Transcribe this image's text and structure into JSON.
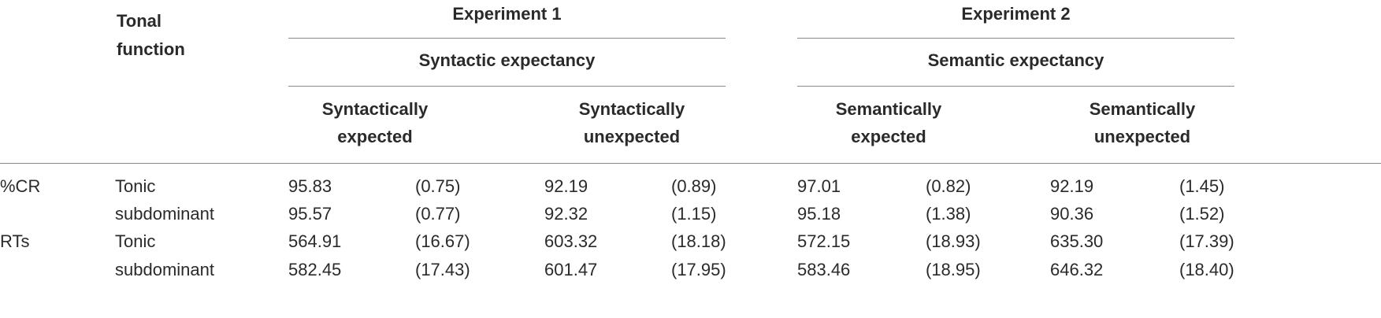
{
  "table": {
    "header": {
      "tonal_function": [
        "Tonal",
        "function"
      ],
      "exp1": {
        "title": "Experiment 1",
        "subtitle": "Syntactic expectancy",
        "cond_a": [
          "Syntactically",
          "expected"
        ],
        "cond_b": [
          "Syntactically",
          "unexpected"
        ]
      },
      "exp2": {
        "title": "Experiment 2",
        "subtitle": "Semantic expectancy",
        "cond_a": [
          "Semantically",
          "expected"
        ],
        "cond_b": [
          "Semantically",
          "unexpected"
        ]
      }
    },
    "rows": [
      {
        "measure": "%CR",
        "function": "Tonic",
        "values": [
          "95.83",
          "(0.75)",
          "92.19",
          "(0.89)",
          "97.01",
          "(0.82)",
          "92.19",
          "(1.45)"
        ]
      },
      {
        "measure": "",
        "function": "subdominant",
        "values": [
          "95.57",
          "(0.77)",
          "92.32",
          "(1.15)",
          "95.18",
          "(1.38)",
          "90.36",
          "(1.52)"
        ]
      },
      {
        "measure": "RTs",
        "function": "Tonic",
        "values": [
          "564.91",
          "(16.67)",
          "603.32",
          "(18.18)",
          "572.15",
          "(18.93)",
          "635.30",
          "(17.39)"
        ]
      },
      {
        "measure": "",
        "function": "subdominant",
        "values": [
          "582.45",
          "(17.43)",
          "601.47",
          "(17.95)",
          "583.46",
          "(18.95)",
          "646.32",
          "(18.40)"
        ]
      }
    ]
  }
}
